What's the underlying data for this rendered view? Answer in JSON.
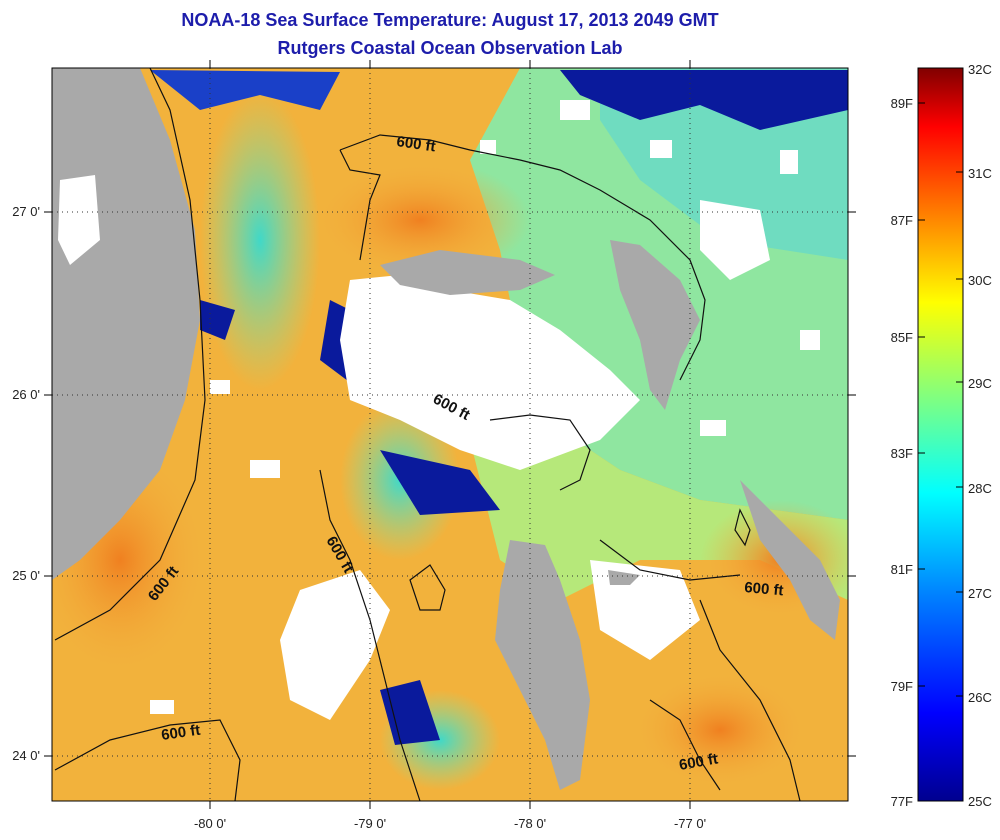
{
  "title": {
    "line1": "NOAA-18 Sea Surface Temperature:  August 17, 2013 2049 GMT",
    "line2": "Rutgers Coastal Ocean Observation Lab"
  },
  "axes": {
    "x_ticks": [
      "-80 0'",
      "-79 0'",
      "-78 0'",
      "-77 0'"
    ],
    "y_ticks": [
      "27 0'",
      "26 0'",
      "25 0'",
      "24 0'"
    ]
  },
  "contour_labels": [
    "600 ft",
    "600 ft",
    "600 ft",
    "600 ft",
    "600 ft",
    "600 ft"
  ],
  "colorbar": {
    "celsius_labels": [
      "32C",
      "31C",
      "30C",
      "29C",
      "28C",
      "27C",
      "26C",
      "25C"
    ],
    "fahrenheit_labels": [
      "89F",
      "87F",
      "85F",
      "83F",
      "81F",
      "79F",
      "77F"
    ],
    "range_celsius": [
      25,
      32
    ],
    "colors": [
      "#00008f",
      "#0000ff",
      "#0080ff",
      "#00ffff",
      "#80ff80",
      "#ffff00",
      "#ff8000",
      "#ff0000",
      "#800000"
    ]
  },
  "colors": {
    "land": "#a9a9a9",
    "cloud": "#ffffff",
    "title": "#1d1dab",
    "warm": "#f2a43a",
    "cool": "#7fe6a8",
    "cold": "#0a1a9c"
  }
}
